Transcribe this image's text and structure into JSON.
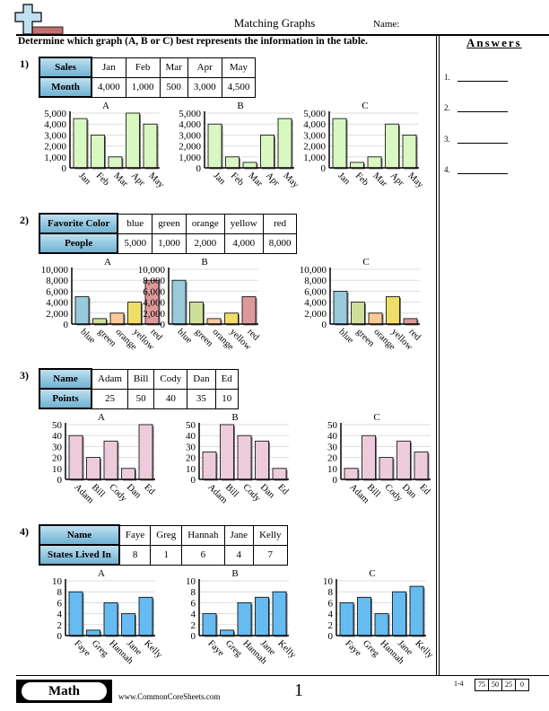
{
  "header": {
    "title": "Matching Graphs",
    "name_label": "Name:"
  },
  "instructions": "Determine which graph (A, B or C) best represents the information in the table.",
  "answers": {
    "title": "Answers",
    "items": [
      "1.",
      "2.",
      "3.",
      "4."
    ]
  },
  "footer": {
    "subject": "Math",
    "website": "www.CommonCoreSheets.com",
    "page": "1",
    "score_range": "1-4",
    "scores": [
      "75",
      "50",
      "25",
      "0"
    ]
  },
  "questions": [
    {
      "number": "1)",
      "row1_header": "Sales",
      "row2_header": "Month",
      "categories": [
        "Jan",
        "Feb",
        "Mar",
        "Apr",
        "May"
      ],
      "values_text": [
        "4,000",
        "1,000",
        "500",
        "3,000",
        "4,500"
      ]
    },
    {
      "number": "2)",
      "row1_header": "Favorite Color",
      "row2_header": "People",
      "categories": [
        "blue",
        "green",
        "orange",
        "yellow",
        "red"
      ],
      "values_text": [
        "5,000",
        "1,000",
        "2,000",
        "4,000",
        "8,000"
      ]
    },
    {
      "number": "3)",
      "row1_header": "Name",
      "row2_header": "Points",
      "categories": [
        "Adam",
        "Bill",
        "Cody",
        "Dan",
        "Ed"
      ],
      "values_text": [
        "25",
        "50",
        "40",
        "35",
        "10"
      ]
    },
    {
      "number": "4)",
      "row1_header": "Name",
      "row2_header": "States Lived In",
      "categories": [
        "Faye",
        "Greg",
        "Hannah",
        "Jane",
        "Kelly"
      ],
      "values_text": [
        "8",
        "1",
        "6",
        "4",
        "7"
      ]
    }
  ],
  "chart_data": [
    {
      "type": "bar",
      "question": "1",
      "title": "A",
      "categories": [
        "Jan",
        "Feb",
        "Mar",
        "Apr",
        "May"
      ],
      "values": [
        4500,
        3000,
        1000,
        5000,
        4000
      ],
      "ylim": [
        0,
        5000
      ],
      "yticks": [
        "0",
        "1,000",
        "2,000",
        "3,000",
        "4,000",
        "5,000"
      ],
      "colors": [
        "#d9f7c0"
      ],
      "grid": true
    },
    {
      "type": "bar",
      "question": "1",
      "title": "B",
      "categories": [
        "Jan",
        "Feb",
        "Mar",
        "Apr",
        "May"
      ],
      "values": [
        4000,
        1000,
        500,
        3000,
        4500
      ],
      "ylim": [
        0,
        5000
      ],
      "yticks": [
        "0",
        "1,000",
        "2,000",
        "3,000",
        "4,000",
        "5,000"
      ],
      "colors": [
        "#d9f7c0"
      ],
      "grid": true
    },
    {
      "type": "bar",
      "question": "1",
      "title": "C",
      "categories": [
        "Jan",
        "Feb",
        "Mar",
        "Apr",
        "May"
      ],
      "values": [
        4500,
        500,
        1000,
        4000,
        3000
      ],
      "ylim": [
        0,
        5000
      ],
      "yticks": [
        "0",
        "1,000",
        "2,000",
        "3,000",
        "4,000",
        "5,000"
      ],
      "colors": [
        "#d9f7c0"
      ],
      "grid": true
    },
    {
      "type": "bar",
      "question": "2",
      "title": "A",
      "categories": [
        "blue",
        "green",
        "orange",
        "yellow",
        "red"
      ],
      "values": [
        5000,
        1000,
        2000,
        4000,
        8000
      ],
      "ylim": [
        0,
        10000
      ],
      "yticks": [
        "0",
        "2,000",
        "4,000",
        "6,000",
        "8,000",
        "10,000"
      ],
      "colors": [
        "#99cadb",
        "#cfdf9a",
        "#fdc996",
        "#eedd66",
        "#dd9999"
      ],
      "grid": true
    },
    {
      "type": "bar",
      "question": "2",
      "title": "B",
      "categories": [
        "blue",
        "green",
        "orange",
        "yellow",
        "red"
      ],
      "values": [
        8000,
        4000,
        1000,
        2000,
        5000
      ],
      "ylim": [
        0,
        10000
      ],
      "yticks": [
        "0",
        "2,000",
        "4,000",
        "6,000",
        "8,000",
        "10,000"
      ],
      "colors": [
        "#99cadb",
        "#cfdf9a",
        "#fdc996",
        "#eedd66",
        "#dd9999"
      ],
      "grid": true
    },
    {
      "type": "bar",
      "question": "2",
      "title": "C",
      "categories": [
        "blue",
        "green",
        "orange",
        "yellow",
        "red"
      ],
      "values": [
        6000,
        4000,
        2000,
        5000,
        1000
      ],
      "ylim": [
        0,
        10000
      ],
      "yticks": [
        "0",
        "2,000",
        "4,000",
        "6,000",
        "8,000",
        "10,000"
      ],
      "colors": [
        "#99cadb",
        "#cfdf9a",
        "#fdc996",
        "#eedd66",
        "#dd9999"
      ],
      "grid": true
    },
    {
      "type": "bar",
      "question": "3",
      "title": "A",
      "categories": [
        "Adam",
        "Bill",
        "Cody",
        "Dan",
        "Ed"
      ],
      "values": [
        40,
        20,
        35,
        10,
        50
      ],
      "ylim": [
        0,
        50
      ],
      "yticks": [
        "0",
        "10",
        "20",
        "30",
        "40",
        "50"
      ],
      "colors": [
        "#eecbdb"
      ],
      "grid": true
    },
    {
      "type": "bar",
      "question": "3",
      "title": "B",
      "categories": [
        "Adam",
        "Bill",
        "Cody",
        "Dan",
        "Ed"
      ],
      "values": [
        25,
        50,
        40,
        35,
        10
      ],
      "ylim": [
        0,
        50
      ],
      "yticks": [
        "0",
        "10",
        "20",
        "30",
        "40",
        "50"
      ],
      "colors": [
        "#eecbdb"
      ],
      "grid": true
    },
    {
      "type": "bar",
      "question": "3",
      "title": "C",
      "categories": [
        "Adam",
        "Bill",
        "Cody",
        "Dan",
        "Ed"
      ],
      "values": [
        10,
        40,
        20,
        35,
        25
      ],
      "ylim": [
        0,
        50
      ],
      "yticks": [
        "0",
        "10",
        "20",
        "30",
        "40",
        "50"
      ],
      "colors": [
        "#eecbdb"
      ],
      "grid": true
    },
    {
      "type": "bar",
      "question": "4",
      "title": "A",
      "categories": [
        "Faye",
        "Greg",
        "Hannah",
        "Jane",
        "Kelly"
      ],
      "values": [
        8,
        1,
        6,
        4,
        7
      ],
      "ylim": [
        0,
        10
      ],
      "yticks": [
        "0",
        "2",
        "4",
        "6",
        "8",
        "10"
      ],
      "colors": [
        "#66bbf0"
      ],
      "grid": true
    },
    {
      "type": "bar",
      "question": "4",
      "title": "B",
      "categories": [
        "Faye",
        "Greg",
        "Hannah",
        "Jane",
        "Kelly"
      ],
      "values": [
        4,
        1,
        6,
        7,
        8
      ],
      "ylim": [
        0,
        10
      ],
      "yticks": [
        "0",
        "2",
        "4",
        "6",
        "8",
        "10"
      ],
      "colors": [
        "#66bbf0"
      ],
      "grid": true
    },
    {
      "type": "bar",
      "question": "4",
      "title": "C",
      "categories": [
        "Faye",
        "Greg",
        "Hannah",
        "Jane",
        "Kelly"
      ],
      "values": [
        6,
        7,
        4,
        8,
        9
      ],
      "ylim": [
        0,
        10
      ],
      "yticks": [
        "0",
        "2",
        "4",
        "6",
        "8",
        "10"
      ],
      "colors": [
        "#66bbf0"
      ],
      "grid": true
    }
  ]
}
